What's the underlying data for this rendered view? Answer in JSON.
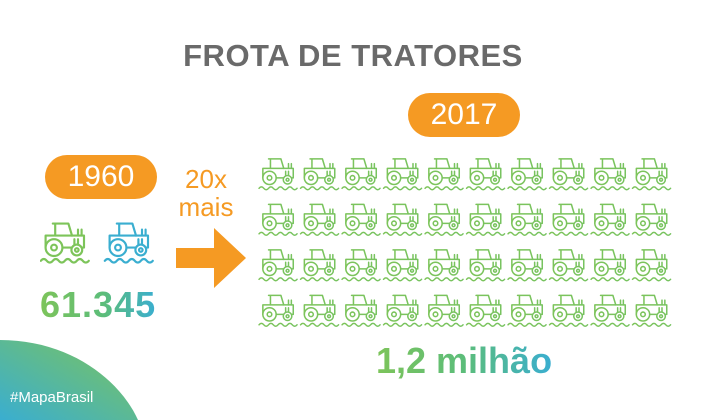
{
  "title": "FROTA DE TRATORES",
  "year_1960": "1960",
  "year_2017": "2017",
  "multiplier": {
    "line1": "20x",
    "line2": "mais"
  },
  "count_1960": "61.345",
  "count_2017": "1,2 milhão",
  "hashtag": "#MapaBrasil",
  "icons": {
    "tractor": "tractor-icon",
    "arrow": "arrow-right-icon"
  },
  "colors": {
    "orange": "#f59a23",
    "green": "#7dc45a",
    "blue": "#3aaed0",
    "title": "#6a6a6a"
  },
  "grid": {
    "rows": 4,
    "columns": 10
  }
}
